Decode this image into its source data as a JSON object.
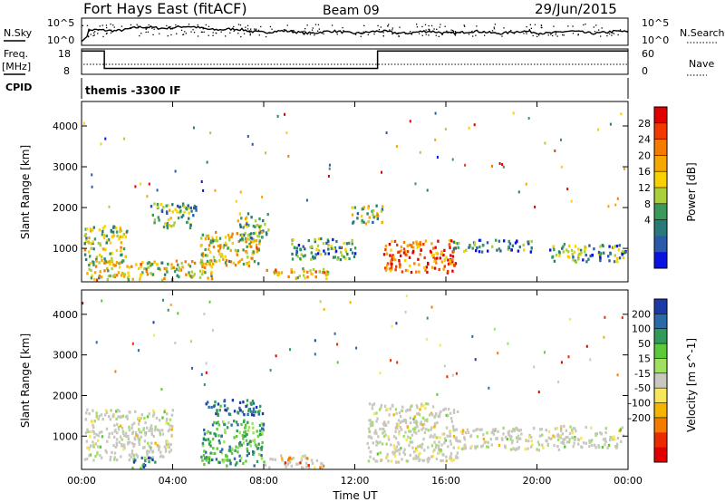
{
  "header": {
    "station": "Fort Hays East (fitACF)",
    "beam": "Beam 09",
    "date": "29/Jun/2015"
  },
  "top_panels": {
    "noise": {
      "left_label": "N.Sky",
      "right_label": "N.Search",
      "left_ticks": [
        "10^5",
        "10^0"
      ],
      "right_ticks": [
        "10^5",
        "10^0"
      ]
    },
    "freq": {
      "left_label_line1": "Freq.",
      "left_label_line2": "[MHz]",
      "right_label": "Nave",
      "left_ticks": [
        "18",
        "8"
      ],
      "right_ticks": [
        "60",
        "0"
      ]
    },
    "cpid": {
      "label": "CPID",
      "text": "themis -3300 IF"
    }
  },
  "colorbars": {
    "power": {
      "label": "Power [dB]",
      "ticks": [
        "28",
        "24",
        "20",
        "16",
        "12",
        "8",
        "4"
      ],
      "colors": [
        "#e00000",
        "#f23a00",
        "#f47a00",
        "#f5a800",
        "#f8d200",
        "#a9cf3a",
        "#3a9a5a",
        "#2b7a7a",
        "#2a5aa8",
        "#0a12e0"
      ]
    },
    "velocity": {
      "label": "Velocity [m s^-1]",
      "ticks": [
        "200",
        "100",
        "50",
        "15",
        "-15",
        "-50",
        "-100",
        "-200"
      ],
      "colors": [
        "#1b3aa8",
        "#2b6aa8",
        "#2f9a5a",
        "#5cc83a",
        "#9fe060",
        "#c8c8c0",
        "#f7e65a",
        "#f4b400",
        "#f47a00",
        "#ec2a00",
        "#e00000"
      ]
    }
  },
  "chart_data": {
    "type": "heatmap",
    "xlabel": "Time UT",
    "ylabel": "Slant Range [km]",
    "xticks": [
      "00:00",
      "04:00",
      "08:00",
      "12:00",
      "16:00",
      "20:00",
      "00:00"
    ],
    "yticks": [
      "4000",
      "3000",
      "2000",
      "1000"
    ],
    "xlim": [
      0,
      24
    ],
    "ylim": [
      180,
      4600
    ],
    "freq_panel": {
      "ylim": [
        8,
        18
      ],
      "nave_ylim": [
        0,
        60
      ]
    },
    "panels": [
      {
        "name": "Power [dB]",
        "regions": [
          {
            "t": [
              0.1,
              2.0
            ],
            "r": [
              650,
              1550
            ],
            "level": 0.45
          },
          {
            "t": [
              0.2,
              5.8
            ],
            "r": [
              220,
              700
            ],
            "level": 0.55
          },
          {
            "t": [
              3.0,
              5.0
            ],
            "r": [
              1500,
              2100
            ],
            "level": 0.35
          },
          {
            "t": [
              5.2,
              7.8
            ],
            "r": [
              550,
              1400
            ],
            "level": 0.55
          },
          {
            "t": [
              6.8,
              8.2
            ],
            "r": [
              1200,
              1850
            ],
            "level": 0.4
          },
          {
            "t": [
              8.0,
              10.8
            ],
            "r": [
              250,
              500
            ],
            "level": 0.6
          },
          {
            "t": [
              9.2,
              12.0
            ],
            "r": [
              700,
              1250
            ],
            "level": 0.3
          },
          {
            "t": [
              11.8,
              13.2
            ],
            "r": [
              1600,
              2050
            ],
            "level": 0.45
          },
          {
            "t": [
              13.2,
              16.4
            ],
            "r": [
              400,
              1200
            ],
            "level": 0.85
          },
          {
            "t": [
              16.3,
              19.8
            ],
            "r": [
              900,
              1200
            ],
            "level": 0.25
          },
          {
            "t": [
              20.5,
              23.9
            ],
            "r": [
              650,
              1100
            ],
            "level": 0.3
          }
        ]
      },
      {
        "name": "Velocity [m s^-1]",
        "regions": [
          {
            "t": [
              0.1,
              4.0
            ],
            "r": [
              400,
              1650
            ],
            "level": 0.5
          },
          {
            "t": [
              2.2,
              3.2
            ],
            "r": [
              200,
              500
            ],
            "level": 0.85
          },
          {
            "t": [
              5.2,
              8.0
            ],
            "r": [
              250,
              1400
            ],
            "level": 0.75
          },
          {
            "t": [
              5.4,
              8.0
            ],
            "r": [
              1500,
              1900
            ],
            "level": 0.9
          },
          {
            "t": [
              8.0,
              10.6
            ],
            "r": [
              200,
              520
            ],
            "level": 0.3
          },
          {
            "t": [
              12.5,
              16.5
            ],
            "r": [
              350,
              1800
            ],
            "level": 0.5
          },
          {
            "t": [
              16.3,
              21.0
            ],
            "r": [
              650,
              1200
            ],
            "level": 0.5
          },
          {
            "t": [
              21.0,
              23.9
            ],
            "r": [
              700,
              1250
            ],
            "level": 0.5
          }
        ]
      }
    ]
  }
}
